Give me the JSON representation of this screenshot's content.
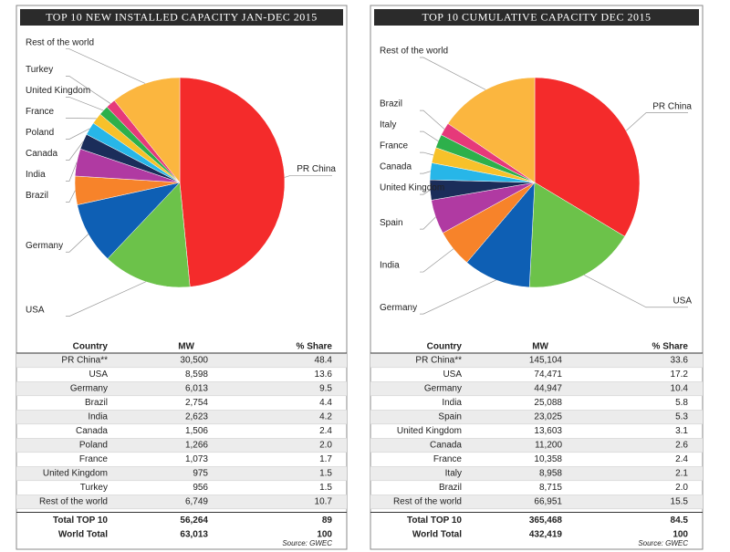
{
  "chart_data": [
    {
      "type": "pie",
      "title": "TOP 10 NEW INSTALLED CAPACITY JAN-DEC 2015",
      "categories": [
        "PR China",
        "USA",
        "Germany",
        "Brazil",
        "India",
        "Canada",
        "Poland",
        "France",
        "United Kingdom",
        "Turkey",
        "Rest of the world"
      ],
      "values": [
        48.4,
        13.6,
        9.5,
        4.4,
        4.2,
        2.4,
        2.0,
        1.7,
        1.5,
        1.5,
        10.7
      ],
      "value_labels": [
        "48.4",
        "13.6",
        "9.5",
        "4.4",
        "4.2",
        "2.4",
        "2.0",
        "1.7",
        "1.5",
        "1.5",
        "10.7"
      ],
      "colors": [
        "#f42b2b",
        "#6cc24a",
        "#0e5fb4",
        "#f7832a",
        "#b03aa2",
        "#1b2d5a",
        "#27b6e8",
        "#f7c12a",
        "#2db04b",
        "#e6397a",
        "#fbb63f"
      ],
      "table": {
        "columns": [
          "Country",
          "MW",
          "% Share"
        ],
        "rows": [
          [
            "PR China**",
            "30,500"
          ],
          [
            "USA",
            "8,598"
          ],
          [
            "Germany",
            "6,013"
          ],
          [
            "Brazil",
            "2,754"
          ],
          [
            "India",
            "2,623"
          ],
          [
            "Canada",
            "1,506"
          ],
          [
            "Poland",
            "1,266"
          ],
          [
            "France",
            "1,073"
          ],
          [
            "United Kingdom",
            "975"
          ],
          [
            "Turkey",
            "956"
          ],
          [
            "Rest of the world",
            "6,749"
          ]
        ],
        "totals": [
          [
            "Total TOP 10",
            "56,264",
            "89"
          ],
          [
            "World Total",
            "63,013",
            "100"
          ]
        ],
        "source": "Source: GWEC"
      }
    },
    {
      "type": "pie",
      "title": "TOP 10 CUMULATIVE CAPACITY DEC 2015",
      "categories": [
        "PR China",
        "USA",
        "Germany",
        "India",
        "Spain",
        "United Kingdom",
        "Canada",
        "France",
        "Italy",
        "Brazil",
        "Rest of the world"
      ],
      "values": [
        33.6,
        17.2,
        10.4,
        5.8,
        5.3,
        3.1,
        2.6,
        2.4,
        2.1,
        2.0,
        15.5
      ],
      "value_labels": [
        "33.6",
        "17.2",
        "10.4",
        "5.8",
        "5.3",
        "3.1",
        "2.6",
        "2.4",
        "2.1",
        "2.0",
        "15.5"
      ],
      "colors": [
        "#f42b2b",
        "#6cc24a",
        "#0e5fb4",
        "#f7832a",
        "#b03aa2",
        "#1b2d5a",
        "#27b6e8",
        "#f7c12a",
        "#2db04b",
        "#e6397a",
        "#fbb63f"
      ],
      "table": {
        "columns": [
          "Country",
          "MW",
          "% Share"
        ],
        "rows": [
          [
            "PR China**",
            "145,104"
          ],
          [
            "USA",
            "74,471"
          ],
          [
            "Germany",
            "44,947"
          ],
          [
            "India",
            "25,088"
          ],
          [
            "Spain",
            "23,025"
          ],
          [
            "United Kingdom",
            "13,603"
          ],
          [
            "Canada",
            "11,200"
          ],
          [
            "France",
            "10,358"
          ],
          [
            "Italy",
            "8,958"
          ],
          [
            "Brazil",
            "8,715"
          ],
          [
            "Rest of the world",
            "66,951"
          ]
        ],
        "totals": [
          [
            "Total TOP 10",
            "365,468",
            "84.5"
          ],
          [
            "World Total",
            "432,419",
            "100"
          ]
        ],
        "source": "Source: GWEC"
      }
    }
  ]
}
